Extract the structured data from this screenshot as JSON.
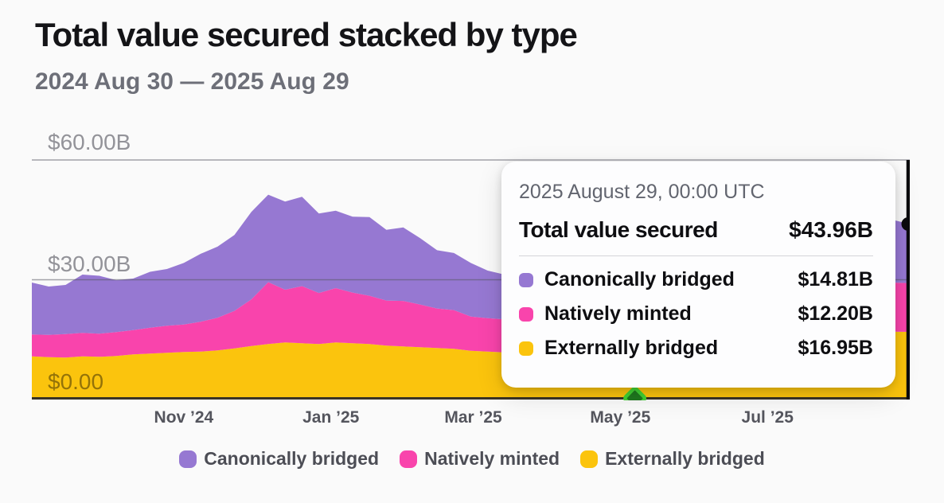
{
  "page": {
    "background": "#fafafa"
  },
  "header": {
    "title": "Total value secured stacked by type",
    "date_range": "2024 Aug 30 — 2025 Aug 29"
  },
  "chart_data": {
    "type": "area",
    "stacked": true,
    "title": "Total value secured stacked by type",
    "x_axis": {
      "start": "2024 Aug 30",
      "end": "2025 Aug 29",
      "range_days": 364,
      "ticks": [
        {
          "label": "Nov ’24",
          "t": 63
        },
        {
          "label": "Jan ’25",
          "t": 124
        },
        {
          "label": "Mar ’25",
          "t": 183
        },
        {
          "label": "May ’25",
          "t": 244
        },
        {
          "label": "Jul ’25",
          "t": 305
        }
      ]
    },
    "y_axis": {
      "unit": "USD billions",
      "max": 60,
      "gridline_values": [
        60,
        30
      ],
      "labels": [
        {
          "text": "$60.00B",
          "value": 60
        },
        {
          "text": "$30.00B",
          "value": 30
        },
        {
          "text": "$0.00",
          "value": 0
        }
      ]
    },
    "points_t": [
      0,
      7,
      14,
      21,
      28,
      35,
      42,
      49,
      56,
      63,
      70,
      77,
      84,
      91,
      98,
      105,
      112,
      119,
      126,
      133,
      140,
      147,
      154,
      161,
      168,
      175,
      182,
      189,
      196,
      203,
      210,
      217,
      224,
      231,
      238,
      245,
      252,
      259,
      266,
      273,
      280,
      287,
      294,
      301,
      308,
      315,
      322,
      329,
      336,
      343,
      350,
      357,
      364
    ],
    "series": [
      {
        "id": "externally-bridged",
        "name": "Externally bridged",
        "color": "#fbc40d",
        "values": [
          10.8,
          10.6,
          10.5,
          10.8,
          10.7,
          10.9,
          11.3,
          11.5,
          11.7,
          11.9,
          12.0,
          12.3,
          12.8,
          13.4,
          13.9,
          14.3,
          14.1,
          13.9,
          14.3,
          14.1,
          13.9,
          13.5,
          13.3,
          13.1,
          12.9,
          12.7,
          12.2,
          12.0,
          11.8,
          11.5,
          11.3,
          11.6,
          11.9,
          12.3,
          12.6,
          12.9,
          13.2,
          13.6,
          13.9,
          14.2,
          14.5,
          14.8,
          15.2,
          15.5,
          15.8,
          16.1,
          16.3,
          16.5,
          16.7,
          16.8,
          16.9,
          17.0,
          16.95
        ]
      },
      {
        "id": "natively-minted",
        "name": "Natively minted",
        "color": "#f944ac",
        "values": [
          5.5,
          5.6,
          5.9,
          5.9,
          5.8,
          6.0,
          6.1,
          6.5,
          6.8,
          6.9,
          7.5,
          8.2,
          9.4,
          11.7,
          15.5,
          13.2,
          14.3,
          12.8,
          13.6,
          12.7,
          12.1,
          11.3,
          11.4,
          10.7,
          9.9,
          9.7,
          8.6,
          8.4,
          8.3,
          8.0,
          7.8,
          7.9,
          8.2,
          8.5,
          8.8,
          9.0,
          9.3,
          9.6,
          9.8,
          10.0,
          10.3,
          10.6,
          10.9,
          11.2,
          11.4,
          11.6,
          11.8,
          12.0,
          12.1,
          12.1,
          12.2,
          12.3,
          12.2
        ]
      },
      {
        "id": "canonically-bridged",
        "name": "Canonically bridged",
        "color": "#9678d2",
        "values": [
          13.0,
          12.1,
          12.3,
          14.6,
          14.5,
          13.0,
          12.9,
          14.0,
          14.2,
          15.4,
          17.0,
          17.8,
          19.0,
          21.9,
          21.9,
          22.1,
          22.4,
          19.9,
          19.4,
          19.0,
          19.7,
          17.7,
          18.4,
          16.6,
          14.6,
          14.3,
          13.4,
          11.9,
          11.2,
          10.5,
          10.1,
          10.3,
          10.9,
          11.4,
          11.8,
          12.1,
          12.4,
          12.6,
          12.9,
          13.1,
          13.3,
          13.6,
          13.8,
          14.0,
          14.2,
          14.4,
          14.5,
          14.6,
          14.7,
          14.6,
          14.7,
          15.7,
          14.81
        ]
      }
    ],
    "milestone": {
      "t": 250,
      "fill": "#1f7a1f",
      "stroke": "#41d334"
    },
    "crosshair": {
      "color": "#0b0b0d",
      "at_last_point": true,
      "dot_value": 43.96
    }
  },
  "tooltip": {
    "timestamp": "2025 August 29, 00:00 UTC",
    "total_label": "Total value secured",
    "total_value": "$43.96B",
    "rows": [
      {
        "label": "Canonically bridged",
        "value": "$14.81B",
        "color": "#9678d2"
      },
      {
        "label": "Natively minted",
        "value": "$12.20B",
        "color": "#f944ac"
      },
      {
        "label": "Externally bridged",
        "value": "$16.95B",
        "color": "#fbc40d"
      }
    ]
  },
  "legend": {
    "items": [
      {
        "label": "Canonically bridged",
        "color": "#9678d2"
      },
      {
        "label": "Natively minted",
        "color": "#f944ac"
      },
      {
        "label": "Externally bridged",
        "color": "#fbc40d"
      }
    ]
  }
}
